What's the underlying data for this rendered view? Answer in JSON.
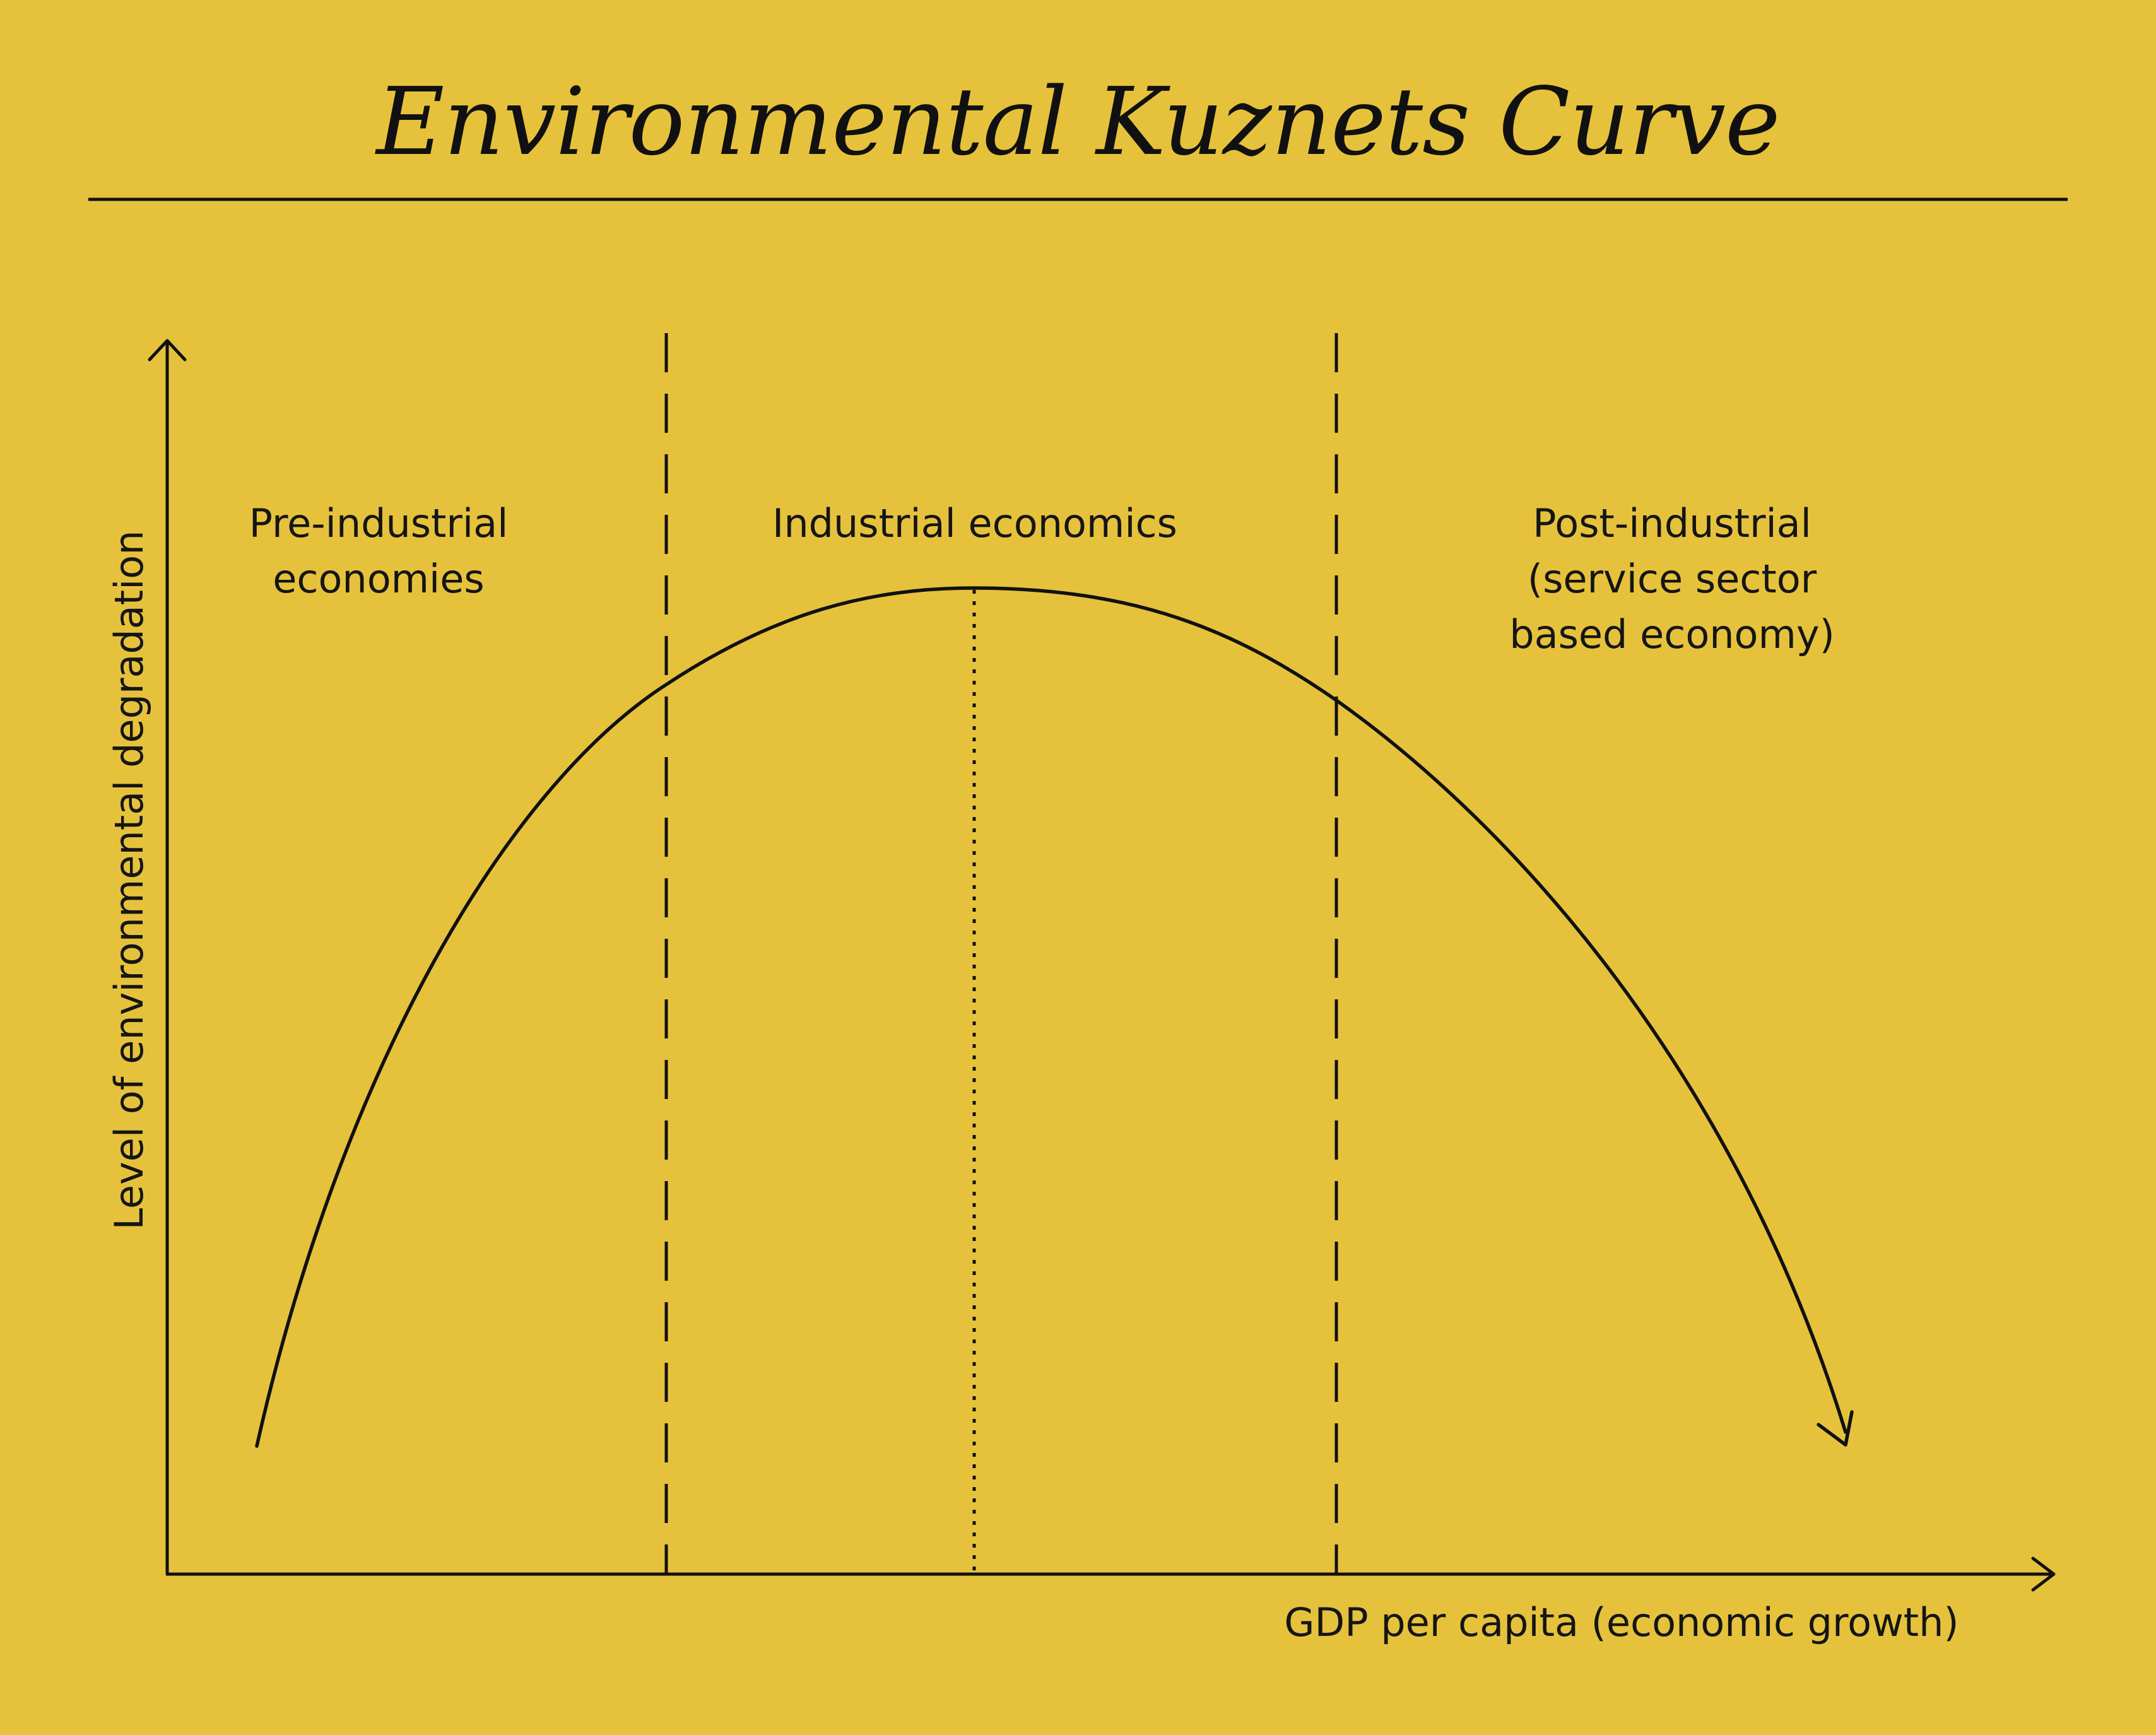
{
  "title": "Environmental Kuznets Curve",
  "axes": {
    "x_label": "GDP per capita (economic growth)",
    "y_label": "Level of environmental degradation"
  },
  "regions": [
    {
      "id": "pre",
      "label": "Pre-industrial\neconomies"
    },
    {
      "id": "industrial",
      "label": "Industrial economics"
    },
    {
      "id": "post",
      "label": "Post-industrial\n(service sector\nbased economy)"
    }
  ],
  "colors": {
    "background": "#e6c23c",
    "ink": "#111111"
  },
  "icons": [
    "y-axis-arrow-icon",
    "x-axis-arrow-icon",
    "curve-arrowhead-icon"
  ]
}
